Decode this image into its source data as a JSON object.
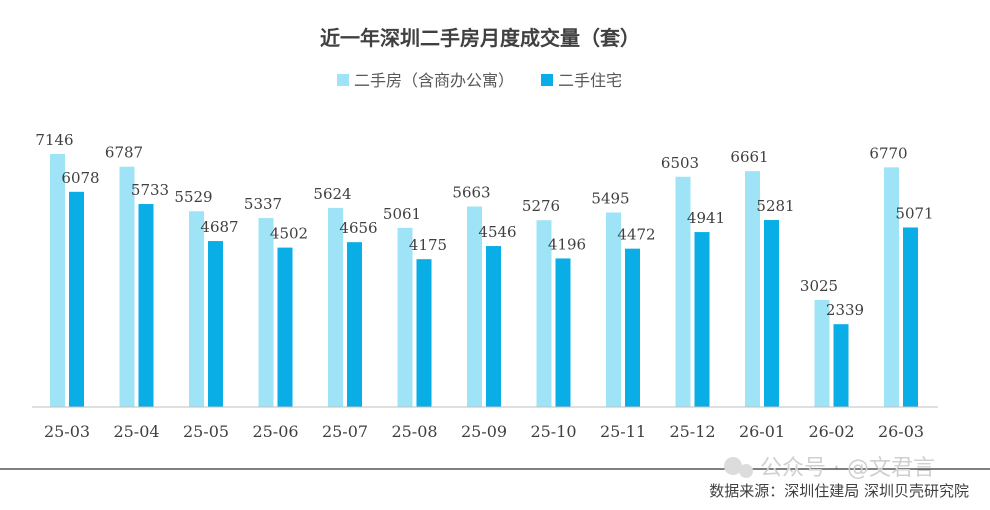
{
  "chart_data": {
    "type": "bar",
    "title": "近一年深圳二手房月度成交量（套）",
    "categories": [
      "25-03",
      "25-04",
      "25-05",
      "25-06",
      "25-07",
      "25-08",
      "25-09",
      "25-10",
      "25-11",
      "25-12",
      "26-01",
      "26-02",
      "26-03"
    ],
    "series": [
      {
        "name": "二手房（含商办公寓）",
        "color": "#9fe3f7",
        "values": [
          7146,
          6787,
          5529,
          5337,
          5624,
          5061,
          5663,
          5276,
          5495,
          6503,
          6661,
          3025,
          6770
        ]
      },
      {
        "name": "二手住宅",
        "color": "#0aaee6",
        "values": [
          6078,
          5733,
          4687,
          4502,
          4656,
          4175,
          4546,
          4196,
          4472,
          4941,
          5281,
          2339,
          5071
        ]
      }
    ],
    "ylim": [
      0,
      7500
    ],
    "grid": false,
    "legend_position": "top-center",
    "xlabel": "",
    "ylabel": ""
  },
  "source": "数据来源：深圳住建局   深圳贝壳研究院",
  "watermark": "公众号 · @文君言"
}
